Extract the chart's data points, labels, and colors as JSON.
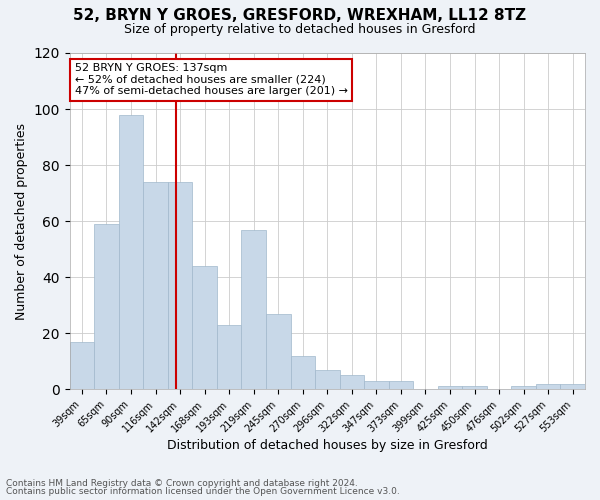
{
  "title1": "52, BRYN Y GROES, GRESFORD, WREXHAM, LL12 8TZ",
  "title2": "Size of property relative to detached houses in Gresford",
  "xlabel": "Distribution of detached houses by size in Gresford",
  "ylabel": "Number of detached properties",
  "categories": [
    "39sqm",
    "65sqm",
    "90sqm",
    "116sqm",
    "142sqm",
    "168sqm",
    "193sqm",
    "219sqm",
    "245sqm",
    "270sqm",
    "296sqm",
    "322sqm",
    "347sqm",
    "373sqm",
    "399sqm",
    "425sqm",
    "450sqm",
    "476sqm",
    "502sqm",
    "527sqm",
    "553sqm"
  ],
  "values": [
    17,
    59,
    98,
    74,
    74,
    44,
    23,
    57,
    27,
    12,
    7,
    5,
    3,
    3,
    0,
    1,
    1,
    0,
    1,
    2,
    2
  ],
  "bar_color": "#c8d8e8",
  "bar_edge_color": "#a0b8cc",
  "ylim": [
    0,
    120
  ],
  "yticks": [
    0,
    20,
    40,
    60,
    80,
    100,
    120
  ],
  "red_line_x": 3.85,
  "annotation_text": "52 BRYN Y GROES: 137sqm\n← 52% of detached houses are smaller (224)\n47% of semi-detached houses are larger (201) →",
  "annotation_box_color": "#ffffff",
  "annotation_box_edge": "#cc0000",
  "red_line_color": "#cc0000",
  "footer1": "Contains HM Land Registry data © Crown copyright and database right 2024.",
  "footer2": "Contains public sector information licensed under the Open Government Licence v3.0.",
  "bg_color": "#eef2f7",
  "plot_bg_color": "#ffffff",
  "title1_fontsize": 11,
  "title2_fontsize": 9,
  "ylabel_fontsize": 9,
  "xlabel_fontsize": 9,
  "tick_fontsize": 7,
  "annotation_fontsize": 8,
  "footer_fontsize": 6.5
}
